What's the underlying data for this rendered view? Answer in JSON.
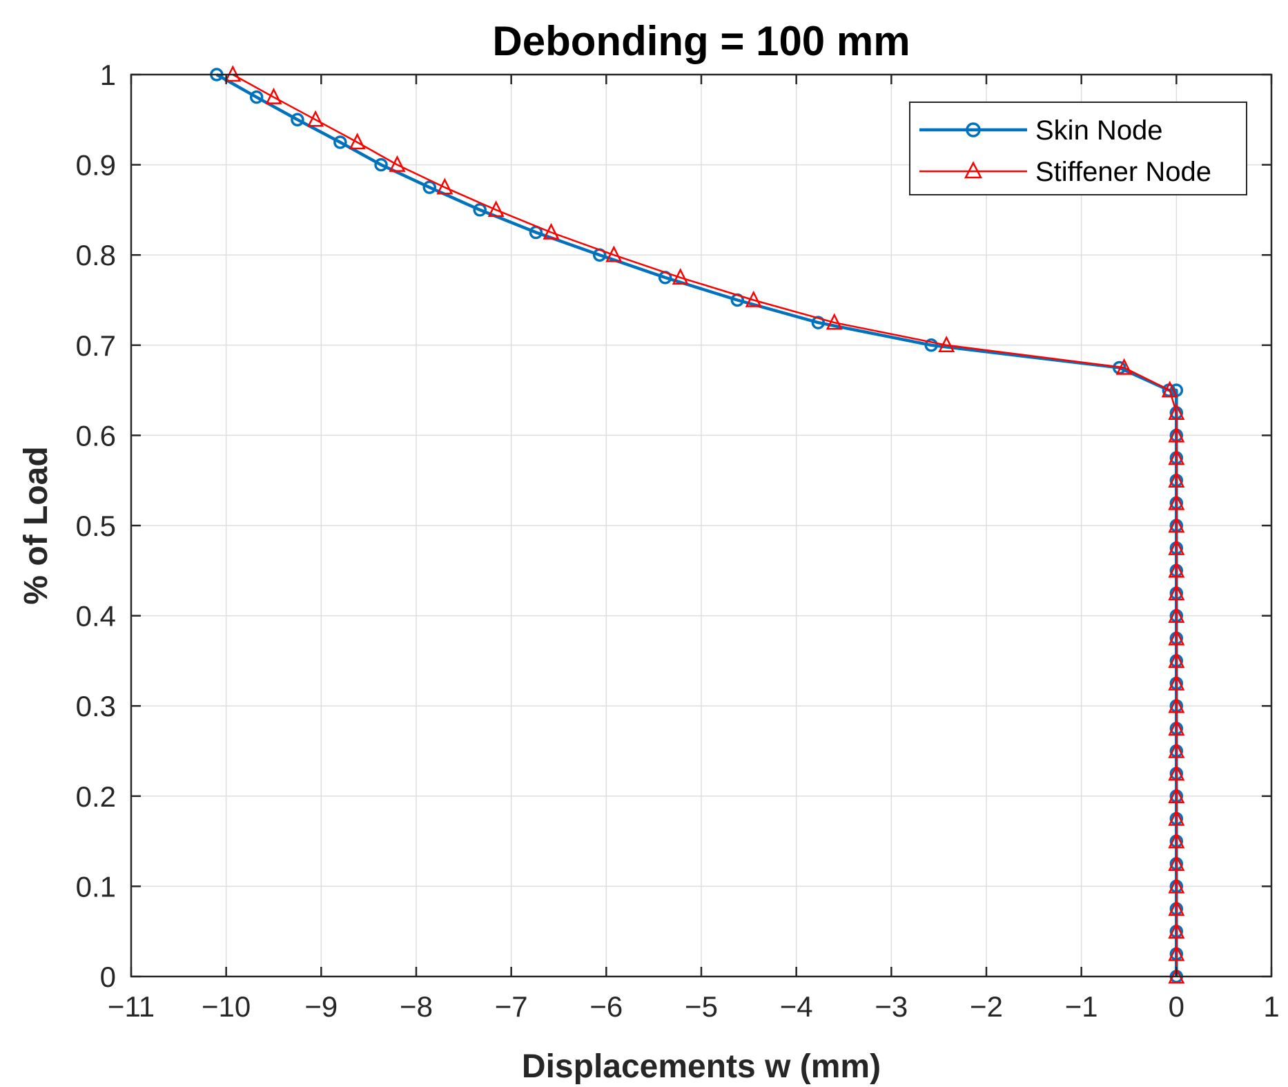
{
  "chart_data": {
    "type": "line",
    "title": "Debonding = 100 mm",
    "xlabel": "Displacements w (mm)",
    "ylabel": "% of Load",
    "xlim": [
      -11,
      1
    ],
    "ylim": [
      0,
      1
    ],
    "xticks": [
      -11,
      -10,
      -9,
      -8,
      -7,
      -6,
      -5,
      -4,
      -3,
      -2,
      -1,
      0,
      1
    ],
    "xtick_labels": [
      "−11",
      "−10",
      "−9",
      "−8",
      "−7",
      "−6",
      "−5",
      "−4",
      "−3",
      "−2",
      "−1",
      "0",
      "1"
    ],
    "yticks": [
      0,
      0.1,
      0.2,
      0.3,
      0.4,
      0.5,
      0.6,
      0.7,
      0.8,
      0.9,
      1
    ],
    "ytick_labels": [
      "0",
      "0.1",
      "0.2",
      "0.3",
      "0.4",
      "0.5",
      "0.6",
      "0.7",
      "0.8",
      "0.9",
      "1"
    ],
    "grid": true,
    "legend_position": "top-right",
    "series": [
      {
        "name": "Skin Node",
        "color": "#0072BD",
        "marker": "circle",
        "x": [
          0,
          0,
          0,
          0,
          0,
          0,
          0,
          0,
          0,
          0,
          0,
          0,
          0,
          0,
          0,
          0,
          0,
          0,
          0,
          0,
          0,
          0,
          0,
          0,
          0,
          0,
          0,
          -0.08,
          -0.6,
          -2.58,
          -3.77,
          -4.62,
          -5.38,
          -6.07,
          -6.74,
          -7.33,
          -7.86,
          -8.37,
          -8.8,
          -9.25,
          -9.68,
          -10.1
        ],
        "y": [
          0,
          0.025,
          0.05,
          0.075,
          0.1,
          0.125,
          0.15,
          0.175,
          0.2,
          0.225,
          0.25,
          0.275,
          0.3,
          0.325,
          0.35,
          0.375,
          0.4,
          0.425,
          0.45,
          0.475,
          0.5,
          0.525,
          0.55,
          0.575,
          0.6,
          0.625,
          0.65,
          0.65,
          0.675,
          0.7,
          0.725,
          0.75,
          0.775,
          0.8,
          0.825,
          0.85,
          0.875,
          0.9,
          0.925,
          0.95,
          0.975,
          1.0
        ]
      },
      {
        "name": "Stiffener Node",
        "color": "#FF0000",
        "marker": "triangle",
        "x": [
          0,
          0,
          0,
          0,
          0,
          0,
          0,
          0,
          0,
          0,
          0,
          0,
          0,
          0,
          0,
          0,
          0,
          0,
          0,
          0,
          0,
          0,
          0,
          0,
          0,
          0,
          -0.07,
          -0.55,
          -2.42,
          -3.6,
          -4.45,
          -5.22,
          -5.92,
          -6.58,
          -7.16,
          -7.7,
          -8.2,
          -8.62,
          -9.06,
          -9.5,
          -9.93
        ],
        "y": [
          0,
          0.025,
          0.05,
          0.075,
          0.1,
          0.125,
          0.15,
          0.175,
          0.2,
          0.225,
          0.25,
          0.275,
          0.3,
          0.325,
          0.35,
          0.375,
          0.4,
          0.425,
          0.45,
          0.475,
          0.5,
          0.525,
          0.55,
          0.575,
          0.6,
          0.625,
          0.65,
          0.675,
          0.7,
          0.725,
          0.75,
          0.775,
          0.8,
          0.825,
          0.85,
          0.875,
          0.9,
          0.925,
          0.95,
          0.975,
          1.0
        ]
      }
    ]
  }
}
